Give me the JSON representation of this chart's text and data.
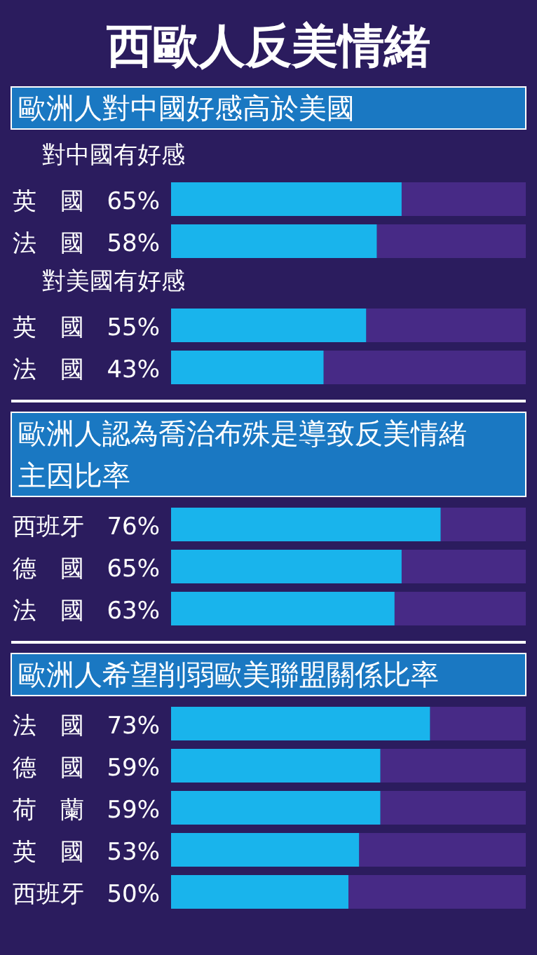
{
  "chart_data": [
    {
      "type": "other",
      "title": "西歐人反美情緒"
    },
    {
      "type": "bar",
      "orientation": "horizontal",
      "title": "歐洲人對中國好感高於美國",
      "subtitle": "對中國有好感",
      "categories": [
        "英　國",
        "法　國"
      ],
      "values": [
        65,
        58
      ],
      "value_labels": [
        "65%",
        "58%"
      ],
      "color": "#19b4ec",
      "xlim": [
        0,
        100
      ],
      "tick_labels": false
    },
    {
      "type": "bar",
      "orientation": "horizontal",
      "subtitle": "對美國有好感",
      "categories": [
        "英　國",
        "法　國"
      ],
      "values": [
        55,
        43
      ],
      "value_labels": [
        "55%",
        "43%"
      ],
      "color": "#19b4ec",
      "xlim": [
        0,
        100
      ],
      "tick_labels": false
    },
    {
      "type": "bar",
      "orientation": "horizontal",
      "title": "歐洲人認為喬治布殊是導致反美情緒主因比率",
      "categories": [
        "西班牙",
        "德　國",
        "法　國"
      ],
      "values": [
        76,
        65,
        63
      ],
      "value_labels": [
        "76%",
        "65%",
        "63%"
      ],
      "color": "#19b4ec",
      "xlim": [
        0,
        100
      ],
      "tick_labels": false
    },
    {
      "type": "bar",
      "orientation": "horizontal",
      "title": "歐洲人希望削弱歐美聯盟關係比率",
      "categories": [
        "法　國",
        "德　國",
        "荷　蘭",
        "英　國",
        "西班牙"
      ],
      "values": [
        73,
        59,
        59,
        53,
        50
      ],
      "value_labels": [
        "73%",
        "59%",
        "59%",
        "53%",
        "50%"
      ],
      "color": "#19b4ec",
      "xlim": [
        0,
        100
      ],
      "tick_labels": false
    }
  ]
}
